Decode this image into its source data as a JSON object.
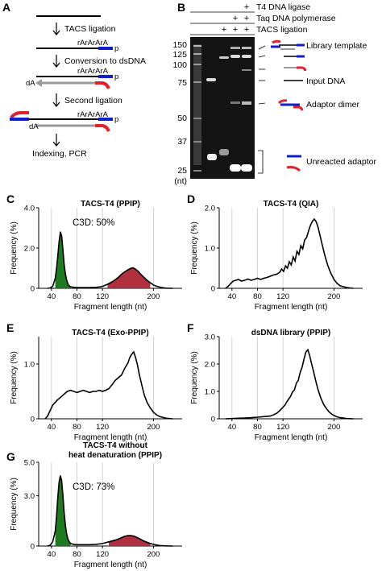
{
  "panel_a": {
    "label": "A",
    "steps": [
      "TACS ligation",
      "Conversion to dsDNA",
      "Second ligation",
      "Indexing, PCR"
    ],
    "strand_labels": [
      "rArArArA",
      "p",
      "rArArArA",
      "p",
      "dA",
      "rArArArA",
      "p",
      "dA"
    ]
  },
  "panel_b": {
    "label": "B",
    "conditions": [
      {
        "name": "T4 DNA ligase",
        "marks": [
          "",
          "",
          "",
          "+"
        ]
      },
      {
        "name": "Taq DNA polymerase",
        "marks": [
          "",
          "",
          "+",
          "+"
        ]
      },
      {
        "name": "TACS ligation",
        "marks": [
          "",
          "+",
          "+",
          "+"
        ]
      }
    ],
    "ladder_labels": [
      "150",
      "125",
      "100",
      "75",
      "50",
      "37",
      "25"
    ],
    "ladder_unit": "(nt)",
    "right_labels": [
      "Library template",
      "Input DNA",
      "Adaptor dimer",
      "Unreacted adaptor"
    ]
  },
  "chart_data": [
    {
      "panel": "C",
      "type": "area",
      "title": "TACS-T4 (PPIP)",
      "annotation": "C3D: 50%",
      "xlabel": "Fragment length (nt)",
      "ylabel": "Frequency (%)",
      "xlim": [
        20,
        245
      ],
      "ylim": [
        0,
        4.0
      ],
      "x_ticks": [
        40,
        80,
        120,
        200
      ],
      "y_ticks": [
        0,
        2.0,
        4.0
      ],
      "x": [
        34,
        38,
        42,
        46,
        48,
        50,
        52,
        54,
        56,
        58,
        60,
        62,
        64,
        66,
        68,
        70,
        75,
        80,
        90,
        100,
        110,
        118,
        122,
        128,
        135,
        140,
        145,
        150,
        155,
        160,
        165,
        168,
        172,
        176,
        180,
        185,
        190,
        195,
        200,
        205,
        210,
        215,
        220,
        230
      ],
      "values": [
        0,
        0.02,
        0.1,
        0.5,
        1.0,
        1.6,
        2.3,
        2.8,
        2.6,
        1.9,
        1.2,
        0.7,
        0.4,
        0.2,
        0.12,
        0.08,
        0.05,
        0.04,
        0.04,
        0.04,
        0.05,
        0.08,
        0.12,
        0.2,
        0.32,
        0.42,
        0.55,
        0.7,
        0.82,
        0.92,
        1.0,
        1.02,
        0.95,
        0.85,
        0.7,
        0.55,
        0.4,
        0.28,
        0.17,
        0.1,
        0.06,
        0.03,
        0.01,
        0
      ],
      "shaded": [
        {
          "from": 44,
          "to": 72,
          "color": "#1f7a1f"
        },
        {
          "from": 128,
          "to": 196,
          "color": "#b03040"
        }
      ]
    },
    {
      "panel": "D",
      "type": "line",
      "title": "TACS-T4 (QIA)",
      "xlabel": "Fragment length (nt)",
      "ylabel": "Frequency (%)",
      "xlim": [
        20,
        245
      ],
      "ylim": [
        0,
        2.0
      ],
      "x_ticks": [
        40,
        80,
        120,
        200
      ],
      "y_ticks": [
        0,
        1.0,
        2.0
      ],
      "x": [
        30,
        34,
        38,
        42,
        46,
        50,
        55,
        60,
        65,
        70,
        75,
        80,
        85,
        90,
        95,
        100,
        105,
        110,
        115,
        118,
        121,
        124,
        127,
        130,
        133,
        136,
        139,
        142,
        145,
        148,
        151,
        154,
        157,
        160,
        163,
        166,
        169,
        172,
        175,
        178,
        182,
        186,
        190,
        195,
        200,
        205,
        210,
        220,
        230
      ],
      "values": [
        0,
        0.05,
        0.12,
        0.18,
        0.2,
        0.22,
        0.18,
        0.2,
        0.23,
        0.2,
        0.22,
        0.25,
        0.22,
        0.25,
        0.27,
        0.3,
        0.33,
        0.35,
        0.4,
        0.48,
        0.42,
        0.56,
        0.5,
        0.66,
        0.58,
        0.78,
        0.68,
        0.92,
        0.84,
        1.06,
        0.98,
        1.2,
        1.26,
        1.42,
        1.56,
        1.66,
        1.72,
        1.66,
        1.52,
        1.32,
        1.05,
        0.8,
        0.58,
        0.38,
        0.22,
        0.12,
        0.06,
        0.02,
        0
      ]
    },
    {
      "panel": "E",
      "type": "line",
      "title": "TACS-T4 (Exo-PPIP)",
      "xlabel": "Fragment length (nt)",
      "ylabel": "Frequency (%)",
      "xlim": [
        20,
        245
      ],
      "ylim": [
        0,
        1.5
      ],
      "x_ticks": [
        40,
        80,
        120,
        200
      ],
      "y_ticks": [
        0,
        1.0
      ],
      "x": [
        30,
        34,
        38,
        42,
        46,
        50,
        55,
        60,
        65,
        70,
        75,
        80,
        85,
        90,
        95,
        100,
        105,
        110,
        115,
        120,
        125,
        130,
        135,
        140,
        145,
        150,
        155,
        160,
        163,
        166,
        169,
        172,
        175,
        178,
        182,
        186,
        190,
        195,
        200,
        205,
        210,
        220,
        230
      ],
      "values": [
        0,
        0.05,
        0.15,
        0.25,
        0.3,
        0.35,
        0.4,
        0.45,
        0.5,
        0.52,
        0.5,
        0.48,
        0.5,
        0.52,
        0.5,
        0.48,
        0.5,
        0.5,
        0.52,
        0.5,
        0.52,
        0.55,
        0.62,
        0.7,
        0.75,
        0.8,
        0.92,
        1.02,
        1.12,
        1.18,
        1.22,
        1.12,
        0.98,
        0.8,
        0.6,
        0.42,
        0.3,
        0.2,
        0.12,
        0.07,
        0.04,
        0.01,
        0
      ]
    },
    {
      "panel": "F",
      "type": "line",
      "title": "dsDNA library (PPIP)",
      "xlabel": "Fragment length (nt)",
      "ylabel": "Frequency (%)",
      "xlim": [
        20,
        245
      ],
      "ylim": [
        0,
        3.0
      ],
      "x_ticks": [
        40,
        80,
        120,
        200
      ],
      "y_ticks": [
        0,
        1.0,
        2.0,
        3.0
      ],
      "x": [
        30,
        40,
        50,
        60,
        70,
        80,
        90,
        100,
        105,
        110,
        115,
        120,
        123,
        126,
        129,
        132,
        135,
        138,
        141,
        144,
        147,
        150,
        153,
        156,
        159,
        162,
        165,
        168,
        171,
        174,
        177,
        180,
        184,
        188,
        192,
        196,
        200,
        205,
        210,
        220,
        230
      ],
      "values": [
        0,
        0.01,
        0.02,
        0.03,
        0.04,
        0.06,
        0.08,
        0.1,
        0.14,
        0.2,
        0.3,
        0.42,
        0.5,
        0.62,
        0.72,
        0.82,
        0.98,
        1.06,
        1.3,
        1.4,
        1.7,
        1.88,
        2.18,
        2.44,
        2.52,
        2.3,
        2.0,
        1.72,
        1.42,
        1.15,
        0.92,
        0.72,
        0.52,
        0.38,
        0.26,
        0.18,
        0.12,
        0.07,
        0.04,
        0.01,
        0
      ]
    },
    {
      "panel": "G",
      "type": "area",
      "title": "TACS-T4 without heat denaturation (PPIP)",
      "annotation": "C3D: 73%",
      "xlabel": "Fragment length (nt)",
      "ylabel": "Frequency (%)",
      "xlim": [
        20,
        245
      ],
      "ylim": [
        0,
        5.0
      ],
      "x_ticks": [
        40,
        80,
        120,
        200
      ],
      "y_ticks": [
        0,
        3.0,
        5.0
      ],
      "x": [
        34,
        38,
        42,
        46,
        48,
        50,
        52,
        54,
        56,
        58,
        60,
        62,
        64,
        66,
        68,
        70,
        75,
        80,
        90,
        100,
        110,
        120,
        130,
        140,
        145,
        150,
        155,
        160,
        165,
        170,
        175,
        180,
        185,
        190,
        195,
        200,
        205,
        210,
        220,
        230
      ],
      "values": [
        0,
        0.05,
        0.25,
        0.9,
        1.8,
        2.9,
        3.8,
        4.2,
        3.9,
        3.0,
        2.0,
        1.2,
        0.7,
        0.4,
        0.25,
        0.15,
        0.1,
        0.08,
        0.08,
        0.08,
        0.1,
        0.15,
        0.25,
        0.35,
        0.42,
        0.5,
        0.58,
        0.62,
        0.62,
        0.58,
        0.5,
        0.4,
        0.3,
        0.22,
        0.15,
        0.1,
        0.06,
        0.03,
        0.01,
        0
      ],
      "shaded": [
        {
          "from": 44,
          "to": 72,
          "color": "#1f7a1f"
        },
        {
          "from": 128,
          "to": 196,
          "color": "#b03040"
        }
      ]
    }
  ]
}
